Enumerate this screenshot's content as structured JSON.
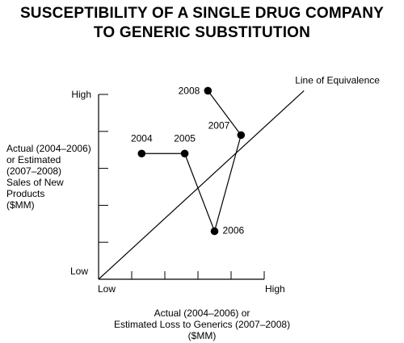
{
  "title_line1": "SUSCEPTIBILITY OF A SINGLE DRUG COMPANY",
  "title_line2": "TO GENERIC SUBSTITUTION",
  "chart_data": {
    "type": "line",
    "title": "SUSCEPTIBILITY OF A SINGLE DRUG COMPANY TO GENERIC SUBSTITUTION",
    "xlabel_lines": [
      "Actual (2004–2006) or",
      "Estimated Loss to Generics (2007–2008)",
      "($MM)"
    ],
    "ylabel_lines": [
      "Actual (2004–2006)",
      "or Estimated",
      "(2007–2008)",
      "Sales of New",
      "Products",
      "($MM)"
    ],
    "x_tick_labels": {
      "low": "Low",
      "high": "High"
    },
    "y_tick_labels": {
      "low": "Low",
      "high": "High"
    },
    "xlim": [
      0,
      5
    ],
    "ylim": [
      0,
      5
    ],
    "grid": false,
    "series": [
      {
        "points": [
          {
            "label": "2004",
            "x": 1.3,
            "y": 3.4
          },
          {
            "label": "2005",
            "x": 2.6,
            "y": 3.4
          },
          {
            "label": "2006",
            "x": 3.5,
            "y": 1.3
          },
          {
            "label": "2007",
            "x": 4.3,
            "y": 3.9
          },
          {
            "label": "2008",
            "x": 3.3,
            "y": 5.1
          }
        ]
      }
    ],
    "reference_line": {
      "label": "Line of Equivalence",
      "from": [
        0,
        0
      ],
      "to": [
        6.2,
        5.1
      ]
    }
  }
}
